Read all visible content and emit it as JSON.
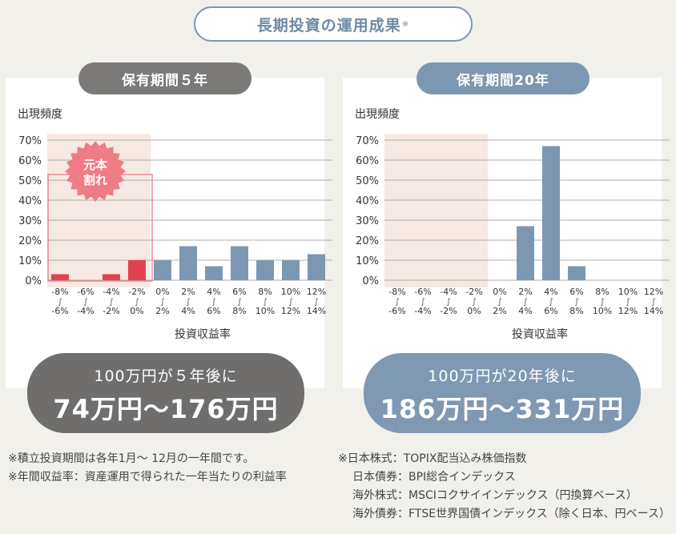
{
  "title": "長期投資の運用成果",
  "title_mark": "※",
  "colors": {
    "blue": "#7c97b2",
    "red": "#e0434f",
    "gray": "#6f6e6c",
    "loss_zone": "#f6e8e2"
  },
  "charts": [
    {
      "period_label": "保有期間５年",
      "ylabel": "出現頻度",
      "xlabel": "投資収益率",
      "stamp": "元本割れ",
      "result_line1": "100万円が５年後に",
      "result_line2": "74万円〜176万円"
    },
    {
      "period_label": "保有期間20年",
      "ylabel": "出現頻度",
      "xlabel": "投資収益率",
      "result_line1": "100万円が20年後に",
      "result_line2": "186万円〜331万円"
    }
  ],
  "chart_data": [
    {
      "type": "bar",
      "title": "保有期間５年",
      "ylabel": "出現頻度",
      "xlabel": "投資収益率",
      "ylim": [
        0,
        70
      ],
      "yticks": [
        "0%",
        "10%",
        "20%",
        "30%",
        "40%",
        "50%",
        "60%",
        "70%"
      ],
      "categories": [
        [
          "-8%",
          "-6%"
        ],
        [
          "-6%",
          "-4%"
        ],
        [
          "-4%",
          "-2%"
        ],
        [
          "-2%",
          "0%"
        ],
        [
          "0%",
          "2%"
        ],
        [
          "2%",
          "4%"
        ],
        [
          "4%",
          "6%"
        ],
        [
          "6%",
          "8%"
        ],
        [
          "8%",
          "10%"
        ],
        [
          "10%",
          "12%"
        ],
        [
          "12%",
          "14%"
        ]
      ],
      "values": [
        3,
        0,
        3,
        10,
        10,
        17,
        7,
        17,
        10,
        10,
        13
      ],
      "negative_categories": 4
    },
    {
      "type": "bar",
      "title": "保有期間20年",
      "ylabel": "出現頻度",
      "xlabel": "投資収益率",
      "ylim": [
        0,
        70
      ],
      "yticks": [
        "0%",
        "10%",
        "20%",
        "30%",
        "40%",
        "50%",
        "60%",
        "70%"
      ],
      "categories": [
        [
          "-8%",
          "-6%"
        ],
        [
          "-6%",
          "-4%"
        ],
        [
          "-4%",
          "-2%"
        ],
        [
          "-2%",
          "0%"
        ],
        [
          "0%",
          "2%"
        ],
        [
          "2%",
          "4%"
        ],
        [
          "4%",
          "6%"
        ],
        [
          "6%",
          "8%"
        ],
        [
          "8%",
          "10%"
        ],
        [
          "10%",
          "12%"
        ],
        [
          "12%",
          "14%"
        ]
      ],
      "values": [
        0,
        0,
        0,
        0,
        0,
        27,
        67,
        7,
        0,
        0,
        0
      ],
      "negative_categories": 4
    }
  ],
  "notes_left": [
    "※積立投資期間は各年1月〜 12月の一年間です。",
    "※年間収益率：資産運用で得られた一年当たりの利益率"
  ],
  "notes_right": [
    "※日本株式：TOPIX配当込み株価指数",
    "日本債券：BPI総合インデックス",
    "海外株式：MSCIコクサイインデックス（円換算ベース）",
    "海外債券：FTSE世界国債インデックス（除く日本、円ベース）"
  ]
}
